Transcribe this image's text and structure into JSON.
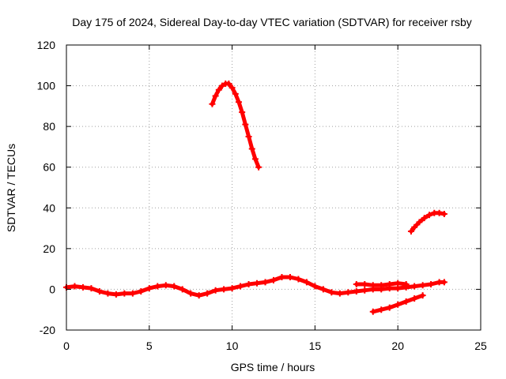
{
  "chart_data": {
    "type": "scatter",
    "title": "Day 175 of 2024, Sidereal Day-to-day VTEC variation (SDTVAR) for receiver rsby",
    "xlabel": "GPS time / hours",
    "ylabel": "SDTVAR / TECUs",
    "xlim": [
      0,
      25
    ],
    "ylim": [
      -20,
      120
    ],
    "xticks": [
      0,
      5,
      10,
      15,
      20,
      25
    ],
    "yticks": [
      -20,
      0,
      20,
      40,
      60,
      80,
      100,
      120
    ],
    "grid": true,
    "marker": "plus",
    "color": "#ff0000",
    "series": [
      {
        "name": "main-near-zero",
        "x": [
          0,
          0.5,
          1,
          1.5,
          2,
          2.5,
          3,
          3.5,
          4,
          4.5,
          5,
          5.5,
          6,
          6.5,
          7,
          7.5,
          8,
          8.5,
          9,
          9.5,
          10,
          10.5,
          11,
          11.5,
          12,
          12.5,
          13,
          13.5,
          14,
          14.5,
          15,
          15.5,
          16,
          16.5,
          17,
          17.5,
          18,
          18.5,
          19,
          19.5,
          20,
          20.5,
          21,
          21.5,
          22,
          22.5,
          22.8
        ],
        "y": [
          1,
          1.5,
          1,
          0.5,
          -1,
          -2,
          -2.5,
          -2,
          -2,
          -1,
          0.5,
          1.5,
          2,
          1.5,
          0,
          -2,
          -3,
          -2,
          -0.5,
          0,
          0.5,
          1.5,
          2.5,
          3,
          3.5,
          4.5,
          6,
          6,
          5,
          3.5,
          1.5,
          0,
          -1.5,
          -2,
          -1.5,
          -1,
          -0.5,
          0,
          0,
          0.5,
          0.5,
          1,
          1.5,
          2,
          2.5,
          3.5,
          3.5
        ]
      },
      {
        "name": "upper-branch-17-21",
        "x": [
          17.5,
          18,
          18.5,
          19,
          19.5,
          20,
          20.5
        ],
        "y": [
          2.5,
          2.5,
          2,
          2,
          2.5,
          3,
          2.5
        ]
      },
      {
        "name": "peak-arc",
        "x": [
          8.8,
          9.0,
          9.2,
          9.4,
          9.6,
          9.8,
          10.0,
          10.2,
          10.4,
          10.6,
          10.8,
          11.0,
          11.2,
          11.4,
          11.6
        ],
        "y": [
          91,
          95,
          98,
          100,
          101,
          101,
          99,
          96,
          92,
          87,
          81,
          75,
          69,
          64,
          60
        ]
      },
      {
        "name": "lower-diagonal",
        "x": [
          18.5,
          19,
          19.5,
          20,
          20.5,
          21,
          21.5
        ],
        "y": [
          -11,
          -10,
          -9,
          -7.5,
          -6,
          -4.5,
          -3
        ]
      },
      {
        "name": "rising-arc-21-23",
        "x": [
          20.8,
          21.0,
          21.3,
          21.6,
          21.9,
          22.2,
          22.5,
          22.8
        ],
        "y": [
          28.5,
          30.5,
          33,
          35,
          36.5,
          37.5,
          37.5,
          37
        ]
      }
    ]
  }
}
